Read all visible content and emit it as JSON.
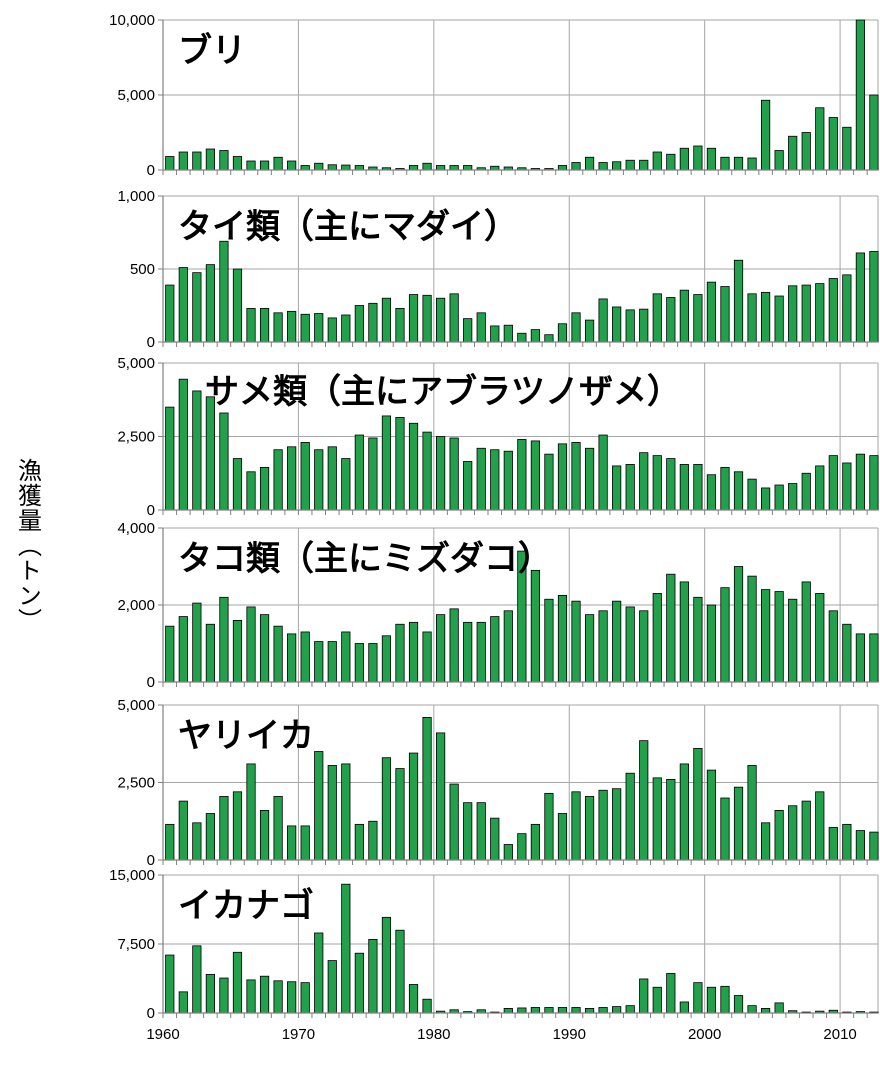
{
  "ylabel": "漁獲量（トン）",
  "colors": {
    "bar_fill": "#22a04b",
    "bar_stroke": "#000000",
    "grid": "#a6a6a6",
    "axis": "#808080"
  },
  "chart_data": {
    "type": "bar",
    "x_start_year": 1960,
    "x_ticks": [
      1960,
      1970,
      1980,
      1990,
      2000,
      2010
    ],
    "xlim": [
      1960,
      2012
    ],
    "grid": true,
    "panels": [
      {
        "title": "ブリ",
        "ylim": [
          0,
          10000
        ],
        "y_ticks": [
          "0",
          "5,000",
          "10,000"
        ],
        "y_tick_values": [
          0,
          5000,
          10000
        ],
        "years": [
          1960,
          1961,
          1962,
          1963,
          1964,
          1965,
          1966,
          1967,
          1968,
          1969,
          1970,
          1971,
          1972,
          1973,
          1974,
          1975,
          1976,
          1977,
          1978,
          1979,
          1980,
          1981,
          1982,
          1983,
          1984,
          1985,
          1986,
          1987,
          1988,
          1989,
          1990,
          1991,
          1992,
          1993,
          1994,
          1995,
          1996,
          1997,
          1998,
          1999,
          2000,
          2001,
          2002,
          2003,
          2004,
          2005,
          2006,
          2007,
          2008,
          2009,
          2010,
          2011,
          2012
        ],
        "values": [
          900,
          1200,
          1200,
          1400,
          1300,
          900,
          600,
          600,
          850,
          600,
          300,
          450,
          350,
          330,
          300,
          200,
          150,
          100,
          300,
          450,
          300,
          300,
          300,
          150,
          250,
          200,
          150,
          100,
          100,
          300,
          500,
          850,
          500,
          550,
          650,
          650,
          1200,
          1050,
          1450,
          1600,
          1450,
          850,
          850,
          800,
          4650,
          1300,
          2250,
          2500,
          4150,
          3500,
          2850,
          10000,
          5000
        ]
      },
      {
        "title": "タイ類（主にマダイ）",
        "ylim": [
          0,
          1000
        ],
        "y_ticks": [
          "0",
          "500",
          "1,000"
        ],
        "y_tick_values": [
          0,
          500,
          1000
        ],
        "years": [
          1960,
          1961,
          1962,
          1963,
          1964,
          1965,
          1966,
          1967,
          1968,
          1969,
          1970,
          1971,
          1972,
          1973,
          1974,
          1975,
          1976,
          1977,
          1978,
          1979,
          1980,
          1981,
          1982,
          1983,
          1984,
          1985,
          1986,
          1987,
          1988,
          1989,
          1990,
          1991,
          1992,
          1993,
          1994,
          1995,
          1996,
          1997,
          1998,
          1999,
          2000,
          2001,
          2002,
          2003,
          2004,
          2005,
          2006,
          2007,
          2008,
          2009,
          2010,
          2011,
          2012
        ],
        "values": [
          390,
          510,
          475,
          530,
          690,
          500,
          230,
          230,
          200,
          210,
          190,
          195,
          165,
          185,
          250,
          265,
          300,
          230,
          325,
          320,
          300,
          330,
          160,
          200,
          110,
          115,
          60,
          85,
          50,
          125,
          200,
          150,
          295,
          240,
          220,
          225,
          330,
          305,
          355,
          325,
          410,
          380,
          560,
          330,
          340,
          315,
          385,
          390,
          400,
          435,
          460,
          610,
          620
        ]
      },
      {
        "title": "サメ類（主にアブラツノザメ）",
        "ylim": [
          0,
          5000
        ],
        "y_ticks": [
          "0",
          "2,500",
          "5,000"
        ],
        "y_tick_values": [
          0,
          2500,
          5000
        ],
        "years": [
          1960,
          1961,
          1962,
          1963,
          1964,
          1965,
          1966,
          1967,
          1968,
          1969,
          1970,
          1971,
          1972,
          1973,
          1974,
          1975,
          1976,
          1977,
          1978,
          1979,
          1980,
          1981,
          1982,
          1983,
          1984,
          1985,
          1986,
          1987,
          1988,
          1989,
          1990,
          1991,
          1992,
          1993,
          1994,
          1995,
          1996,
          1997,
          1998,
          1999,
          2000,
          2001,
          2002,
          2003,
          2004,
          2005,
          2006,
          2007,
          2008,
          2009,
          2010,
          2011,
          2012
        ],
        "values": [
          3500,
          4450,
          4050,
          3850,
          3300,
          1750,
          1300,
          1450,
          2050,
          2150,
          2300,
          2050,
          2150,
          1750,
          2550,
          2450,
          3200,
          3150,
          2950,
          2650,
          2500,
          2450,
          1650,
          2100,
          2050,
          2000,
          2400,
          2350,
          1900,
          2250,
          2300,
          2100,
          2550,
          1500,
          1550,
          1950,
          1850,
          1750,
          1550,
          1550,
          1200,
          1450,
          1300,
          1050,
          750,
          850,
          900,
          1250,
          1500,
          1850,
          1600,
          1900,
          1850
        ]
      },
      {
        "title": "タコ類（主にミズダコ）",
        "ylim": [
          0,
          4000
        ],
        "y_ticks": [
          "0",
          "2,000",
          "4,000"
        ],
        "y_tick_values": [
          0,
          2000,
          4000
        ],
        "years": [
          1960,
          1961,
          1962,
          1963,
          1964,
          1965,
          1966,
          1967,
          1968,
          1969,
          1970,
          1971,
          1972,
          1973,
          1974,
          1975,
          1976,
          1977,
          1978,
          1979,
          1980,
          1981,
          1982,
          1983,
          1984,
          1985,
          1986,
          1987,
          1988,
          1989,
          1990,
          1991,
          1992,
          1993,
          1994,
          1995,
          1996,
          1997,
          1998,
          1999,
          2000,
          2001,
          2002,
          2003,
          2004,
          2005,
          2006,
          2007,
          2008,
          2009,
          2010,
          2011,
          2012
        ],
        "values": [
          1450,
          1700,
          2050,
          1500,
          2200,
          1600,
          1950,
          1750,
          1450,
          1250,
          1300,
          1050,
          1050,
          1300,
          1000,
          1000,
          1200,
          1500,
          1550,
          1300,
          1750,
          1900,
          1550,
          1550,
          1700,
          1850,
          3400,
          2900,
          2150,
          2250,
          2100,
          1750,
          1850,
          2100,
          1950,
          1850,
          2300,
          2800,
          2600,
          2200,
          2000,
          2450,
          3000,
          2750,
          2400,
          2350,
          2150,
          2600,
          2300,
          1850,
          1500,
          1250,
          1250
        ]
      },
      {
        "title": "ヤリイカ",
        "ylim": [
          0,
          5000
        ],
        "y_ticks": [
          "0",
          "2,500",
          "5,000"
        ],
        "y_tick_values": [
          0,
          2500,
          5000
        ],
        "years": [
          1960,
          1961,
          1962,
          1963,
          1964,
          1965,
          1966,
          1967,
          1968,
          1969,
          1970,
          1971,
          1972,
          1973,
          1974,
          1975,
          1976,
          1977,
          1978,
          1979,
          1980,
          1981,
          1982,
          1983,
          1984,
          1985,
          1986,
          1987,
          1988,
          1989,
          1990,
          1991,
          1992,
          1993,
          1994,
          1995,
          1996,
          1997,
          1998,
          1999,
          2000,
          2001,
          2002,
          2003,
          2004,
          2005,
          2006,
          2007,
          2008,
          2009,
          2010,
          2011,
          2012
        ],
        "values": [
          1150,
          1900,
          1200,
          1500,
          2050,
          2200,
          3100,
          1600,
          2050,
          1100,
          1100,
          3500,
          3050,
          3100,
          1150,
          1250,
          3300,
          2950,
          3450,
          4600,
          4100,
          2450,
          1850,
          1850,
          1350,
          500,
          850,
          1150,
          2150,
          1500,
          2200,
          2050,
          2250,
          2300,
          2800,
          3850,
          2650,
          2600,
          3100,
          3600,
          2900,
          2000,
          2350,
          3050,
          1200,
          1600,
          1750,
          1900,
          2200,
          1050,
          1150,
          950,
          900
        ]
      },
      {
        "title": "イカナゴ",
        "ylim": [
          0,
          15000
        ],
        "y_ticks": [
          "0",
          "7,500",
          "15,000"
        ],
        "y_tick_values": [
          0,
          7500,
          15000
        ],
        "years": [
          1960,
          1961,
          1962,
          1963,
          1964,
          1965,
          1966,
          1967,
          1968,
          1969,
          1970,
          1971,
          1972,
          1973,
          1974,
          1975,
          1976,
          1977,
          1978,
          1979,
          1980,
          1981,
          1982,
          1983,
          1984,
          1985,
          1986,
          1987,
          1988,
          1989,
          1990,
          1991,
          1992,
          1993,
          1994,
          1995,
          1996,
          1997,
          1998,
          1999,
          2000,
          2001,
          2002,
          2003,
          2004,
          2005,
          2006,
          2007,
          2008,
          2009,
          2010,
          2011,
          2012
        ],
        "values": [
          6300,
          2300,
          7300,
          4200,
          3800,
          6600,
          3600,
          4000,
          3500,
          3400,
          3300,
          8700,
          5700,
          14000,
          6500,
          8000,
          10400,
          9000,
          3100,
          1500,
          200,
          350,
          150,
          350,
          100,
          500,
          550,
          600,
          600,
          600,
          600,
          500,
          600,
          700,
          800,
          3700,
          2800,
          4300,
          1200,
          3300,
          2800,
          2900,
          1900,
          800,
          500,
          1100,
          250,
          100,
          200,
          300,
          100,
          150,
          100
        ]
      }
    ]
  }
}
